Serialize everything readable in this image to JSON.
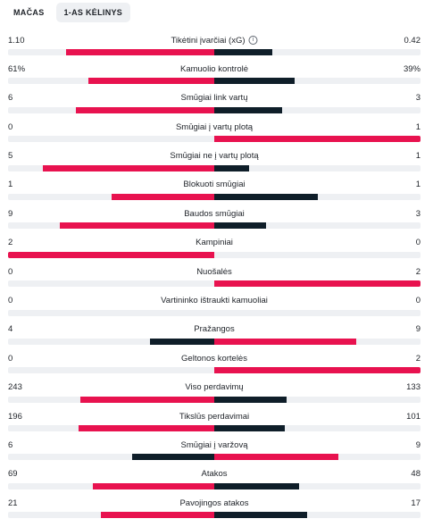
{
  "tabs": [
    {
      "label": "MAČAS",
      "active": false
    },
    {
      "label": "1-AS KĖLINYS",
      "active": true
    }
  ],
  "colors": {
    "highlight": "#e8124f",
    "secondary": "#0f1e29",
    "track": "#eef0f3"
  },
  "stats": [
    {
      "label": "Tikėtini įvarčiai (xG)",
      "home": "1.10",
      "away": "0.42",
      "home_share": 0.72,
      "away_share": 0.28,
      "info_icon": "info-icon"
    },
    {
      "label": "Kamuolio kontrolė",
      "home": "61%",
      "away": "39%",
      "home_share": 0.61,
      "away_share": 0.39
    },
    {
      "label": "Smūgiai link vartų",
      "home": "6",
      "away": "3",
      "home_share": 0.67,
      "away_share": 0.33
    },
    {
      "label": "Smūgiai į vartų plotą",
      "home": "0",
      "away": "1",
      "home_share": 0.0,
      "away_share": 1.0
    },
    {
      "label": "Smūgiai ne į vartų plotą",
      "home": "5",
      "away": "1",
      "home_share": 0.83,
      "away_share": 0.17
    },
    {
      "label": "Blokuoti smūgiai",
      "home": "1",
      "away": "1",
      "home_share": 0.5,
      "away_share": 0.5
    },
    {
      "label": "Baudos smūgiai",
      "home": "9",
      "away": "3",
      "home_share": 0.75,
      "away_share": 0.25
    },
    {
      "label": "Kampiniai",
      "home": "2",
      "away": "0",
      "home_share": 1.0,
      "away_share": 0.0
    },
    {
      "label": "Nuošalės",
      "home": "0",
      "away": "2",
      "home_share": 0.0,
      "away_share": 1.0
    },
    {
      "label": "Vartininko ištraukti kamuoliai",
      "home": "0",
      "away": "0",
      "home_share": 0.0,
      "away_share": 0.0
    },
    {
      "label": "Pražangos",
      "home": "4",
      "away": "9",
      "home_share": 0.31,
      "away_share": 0.69
    },
    {
      "label": "Geltonos kortelės",
      "home": "0",
      "away": "2",
      "home_share": 0.0,
      "away_share": 1.0
    },
    {
      "label": "Viso perdavimų",
      "home": "243",
      "away": "133",
      "home_share": 0.65,
      "away_share": 0.35
    },
    {
      "label": "Tikslūs perdavimai",
      "home": "196",
      "away": "101",
      "home_share": 0.66,
      "away_share": 0.34
    },
    {
      "label": "Smūgiai į varžovą",
      "home": "6",
      "away": "9",
      "home_share": 0.4,
      "away_share": 0.6
    },
    {
      "label": "Atakos",
      "home": "69",
      "away": "48",
      "home_share": 0.59,
      "away_share": 0.41
    },
    {
      "label": "Pavojingos atakos",
      "home": "21",
      "away": "17",
      "home_share": 0.55,
      "away_share": 0.45
    }
  ]
}
